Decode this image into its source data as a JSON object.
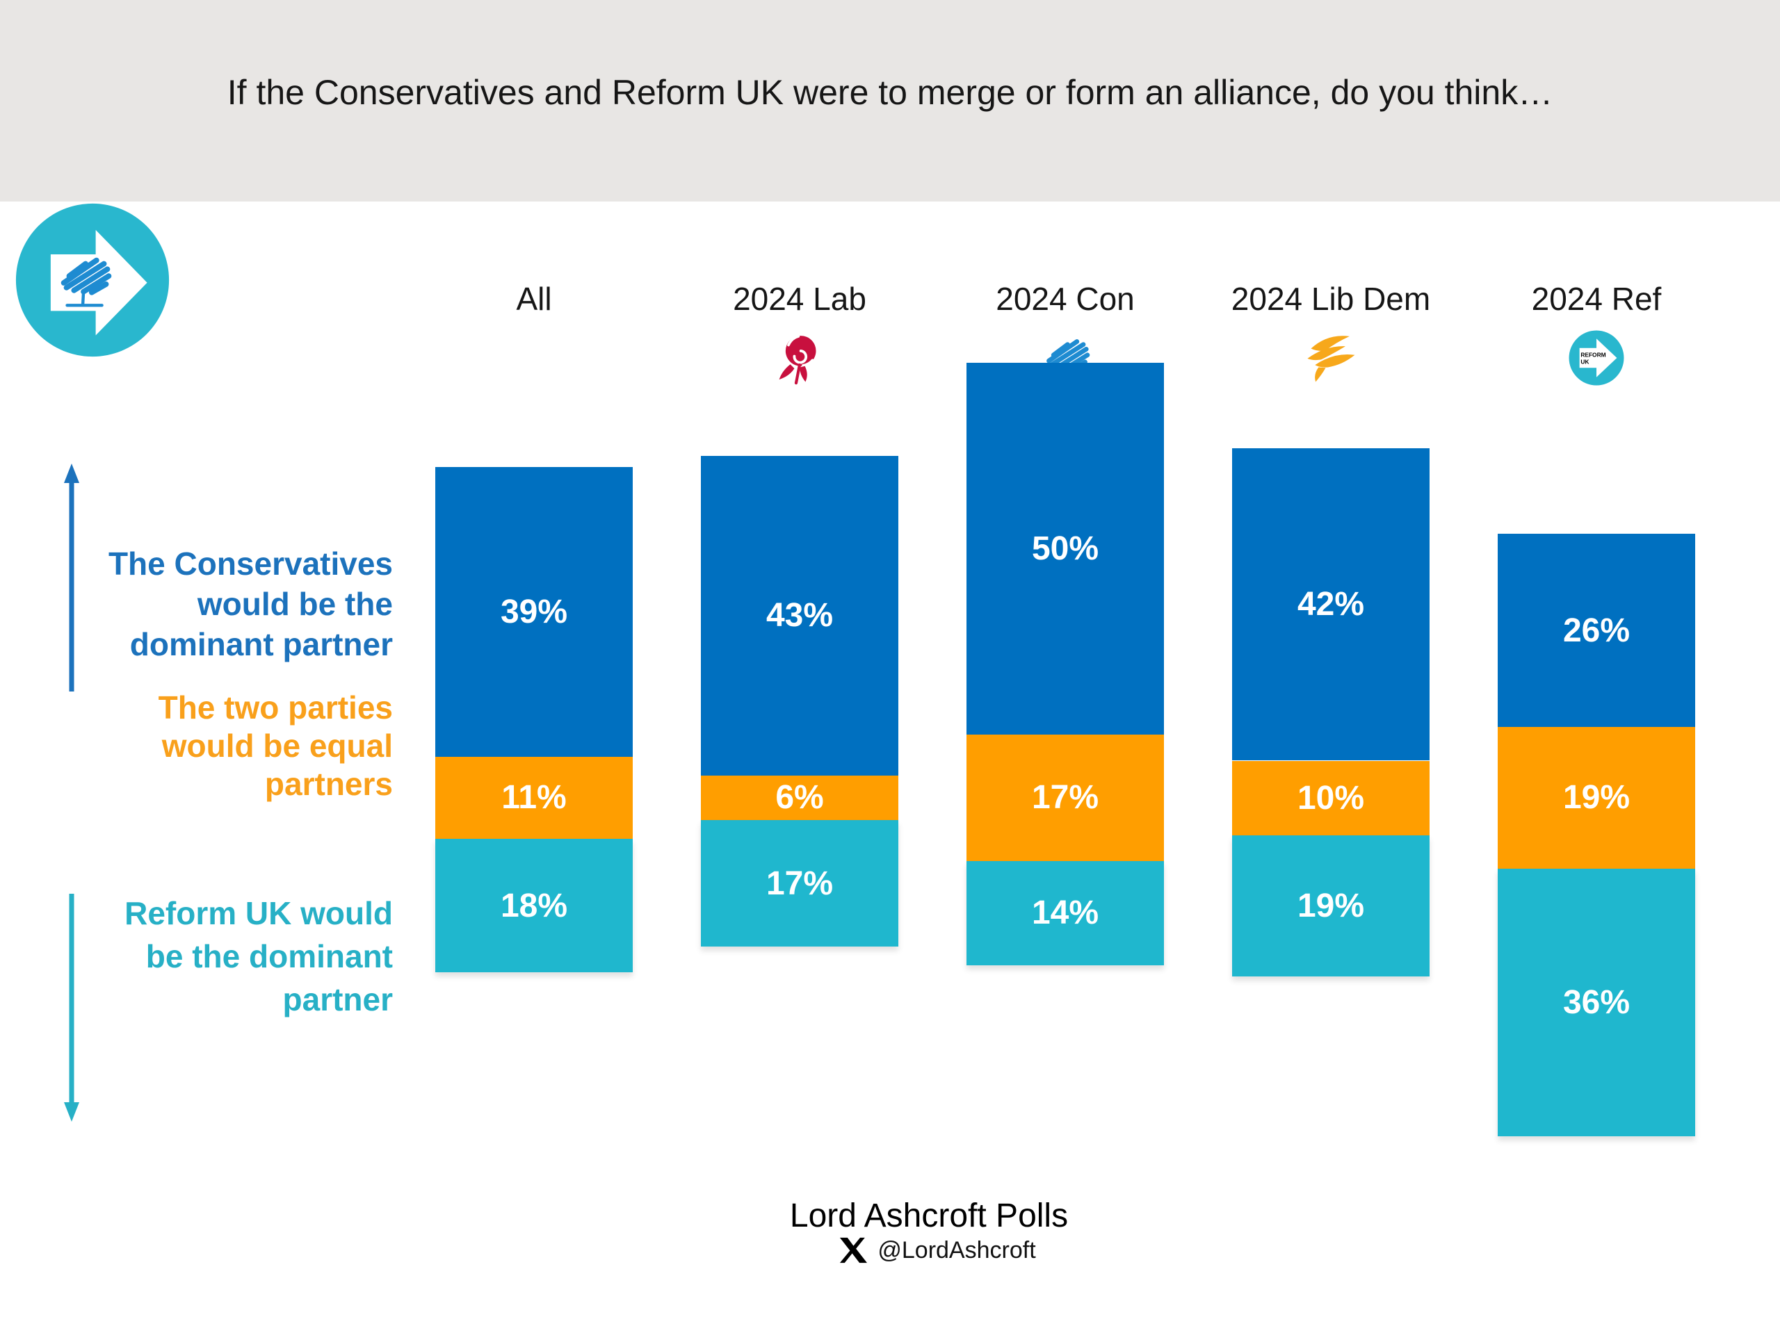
{
  "header": {
    "title": "If the Conservatives and Reform UK were to merge or form an alliance, do you think…",
    "band_bg": "#E8E6E4"
  },
  "columns": [
    {
      "key": "all",
      "label": "All",
      "icon": null
    },
    {
      "key": "lab",
      "label": "2024 Lab",
      "icon": "labour-rose"
    },
    {
      "key": "con",
      "label": "2024 Con",
      "icon": "conservative-tree"
    },
    {
      "key": "libdem",
      "label": "2024 Lib Dem",
      "icon": "libdem-bird"
    },
    {
      "key": "ref",
      "label": "2024 Ref",
      "icon": "reform-uk"
    }
  ],
  "chart_data": {
    "type": "bar",
    "stacked": true,
    "alignment": "centered-on-middle-series",
    "grid": false,
    "legend_position": "left",
    "value_suffix": "%",
    "categories": [
      "All",
      "2024 Lab",
      "2024 Con",
      "2024 Lib Dem",
      "2024 Ref"
    ],
    "category_keys": [
      "all",
      "lab",
      "con",
      "libdem",
      "ref"
    ],
    "series": [
      {
        "key": "con_dominant",
        "name": "The Conservatives would be the dominant partner",
        "color": "#0070C0",
        "values": [
          39,
          43,
          50,
          42,
          26
        ]
      },
      {
        "key": "equal",
        "name": "The two parties would be equal partners",
        "color": "#FF9E00",
        "values": [
          11,
          6,
          17,
          10,
          19
        ]
      },
      {
        "key": "ref_dominant",
        "name": "Reform UK would be the dominant partner",
        "color": "#1FB7CE",
        "values": [
          18,
          17,
          14,
          19,
          36
        ]
      }
    ]
  },
  "legend": {
    "items": [
      {
        "key": "con_dominant",
        "lines": [
          "The Conservatives",
          "would be the",
          "dominant partner"
        ],
        "color": "#1C72BC"
      },
      {
        "key": "equal",
        "lines": [
          "The two parties",
          "would be equal",
          "partners"
        ],
        "color": "#F9A01B"
      },
      {
        "key": "ref_dominant",
        "lines": [
          "Reform UK would",
          "be the dominant",
          "partner"
        ],
        "color": "#27B0C6"
      }
    ]
  },
  "icon_colors": {
    "teal": "#29B7CE",
    "tree_blue": "#1E8BD1",
    "rose_red": "#C8103E",
    "bird_gold": "#F7A81B",
    "x_black": "#000000"
  },
  "footer": {
    "brand": "Lord Ashcroft Polls",
    "handle": "@LordAshcroft"
  }
}
